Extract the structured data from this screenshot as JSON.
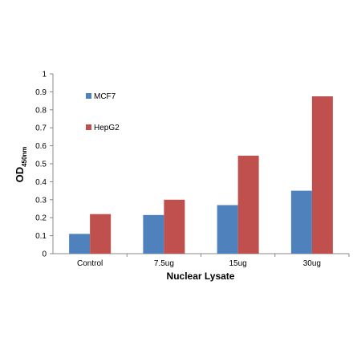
{
  "chart_data": {
    "type": "bar",
    "categories": [
      "Control",
      "7.5ug",
      "15ug",
      "30ug"
    ],
    "series": [
      {
        "name": "MCF7",
        "values": [
          0.11,
          0.215,
          0.27,
          0.35
        ],
        "color": "#4F81BD"
      },
      {
        "name": "HepG2",
        "values": [
          0.22,
          0.3,
          0.545,
          0.875
        ],
        "color": "#C0504D"
      }
    ],
    "xlabel": "Nuclear Lysate",
    "ylabel": {
      "main": "OD",
      "subscript": "450nm"
    },
    "ylim": [
      0,
      1
    ],
    "yticks": [
      "0",
      "0.1",
      "0.2",
      "0.3",
      "0.4",
      "0.5",
      "0.6",
      "0.7",
      "0.8",
      "0.9",
      "1"
    ],
    "legend_placement": "upper-left inside plot",
    "grid": false
  }
}
